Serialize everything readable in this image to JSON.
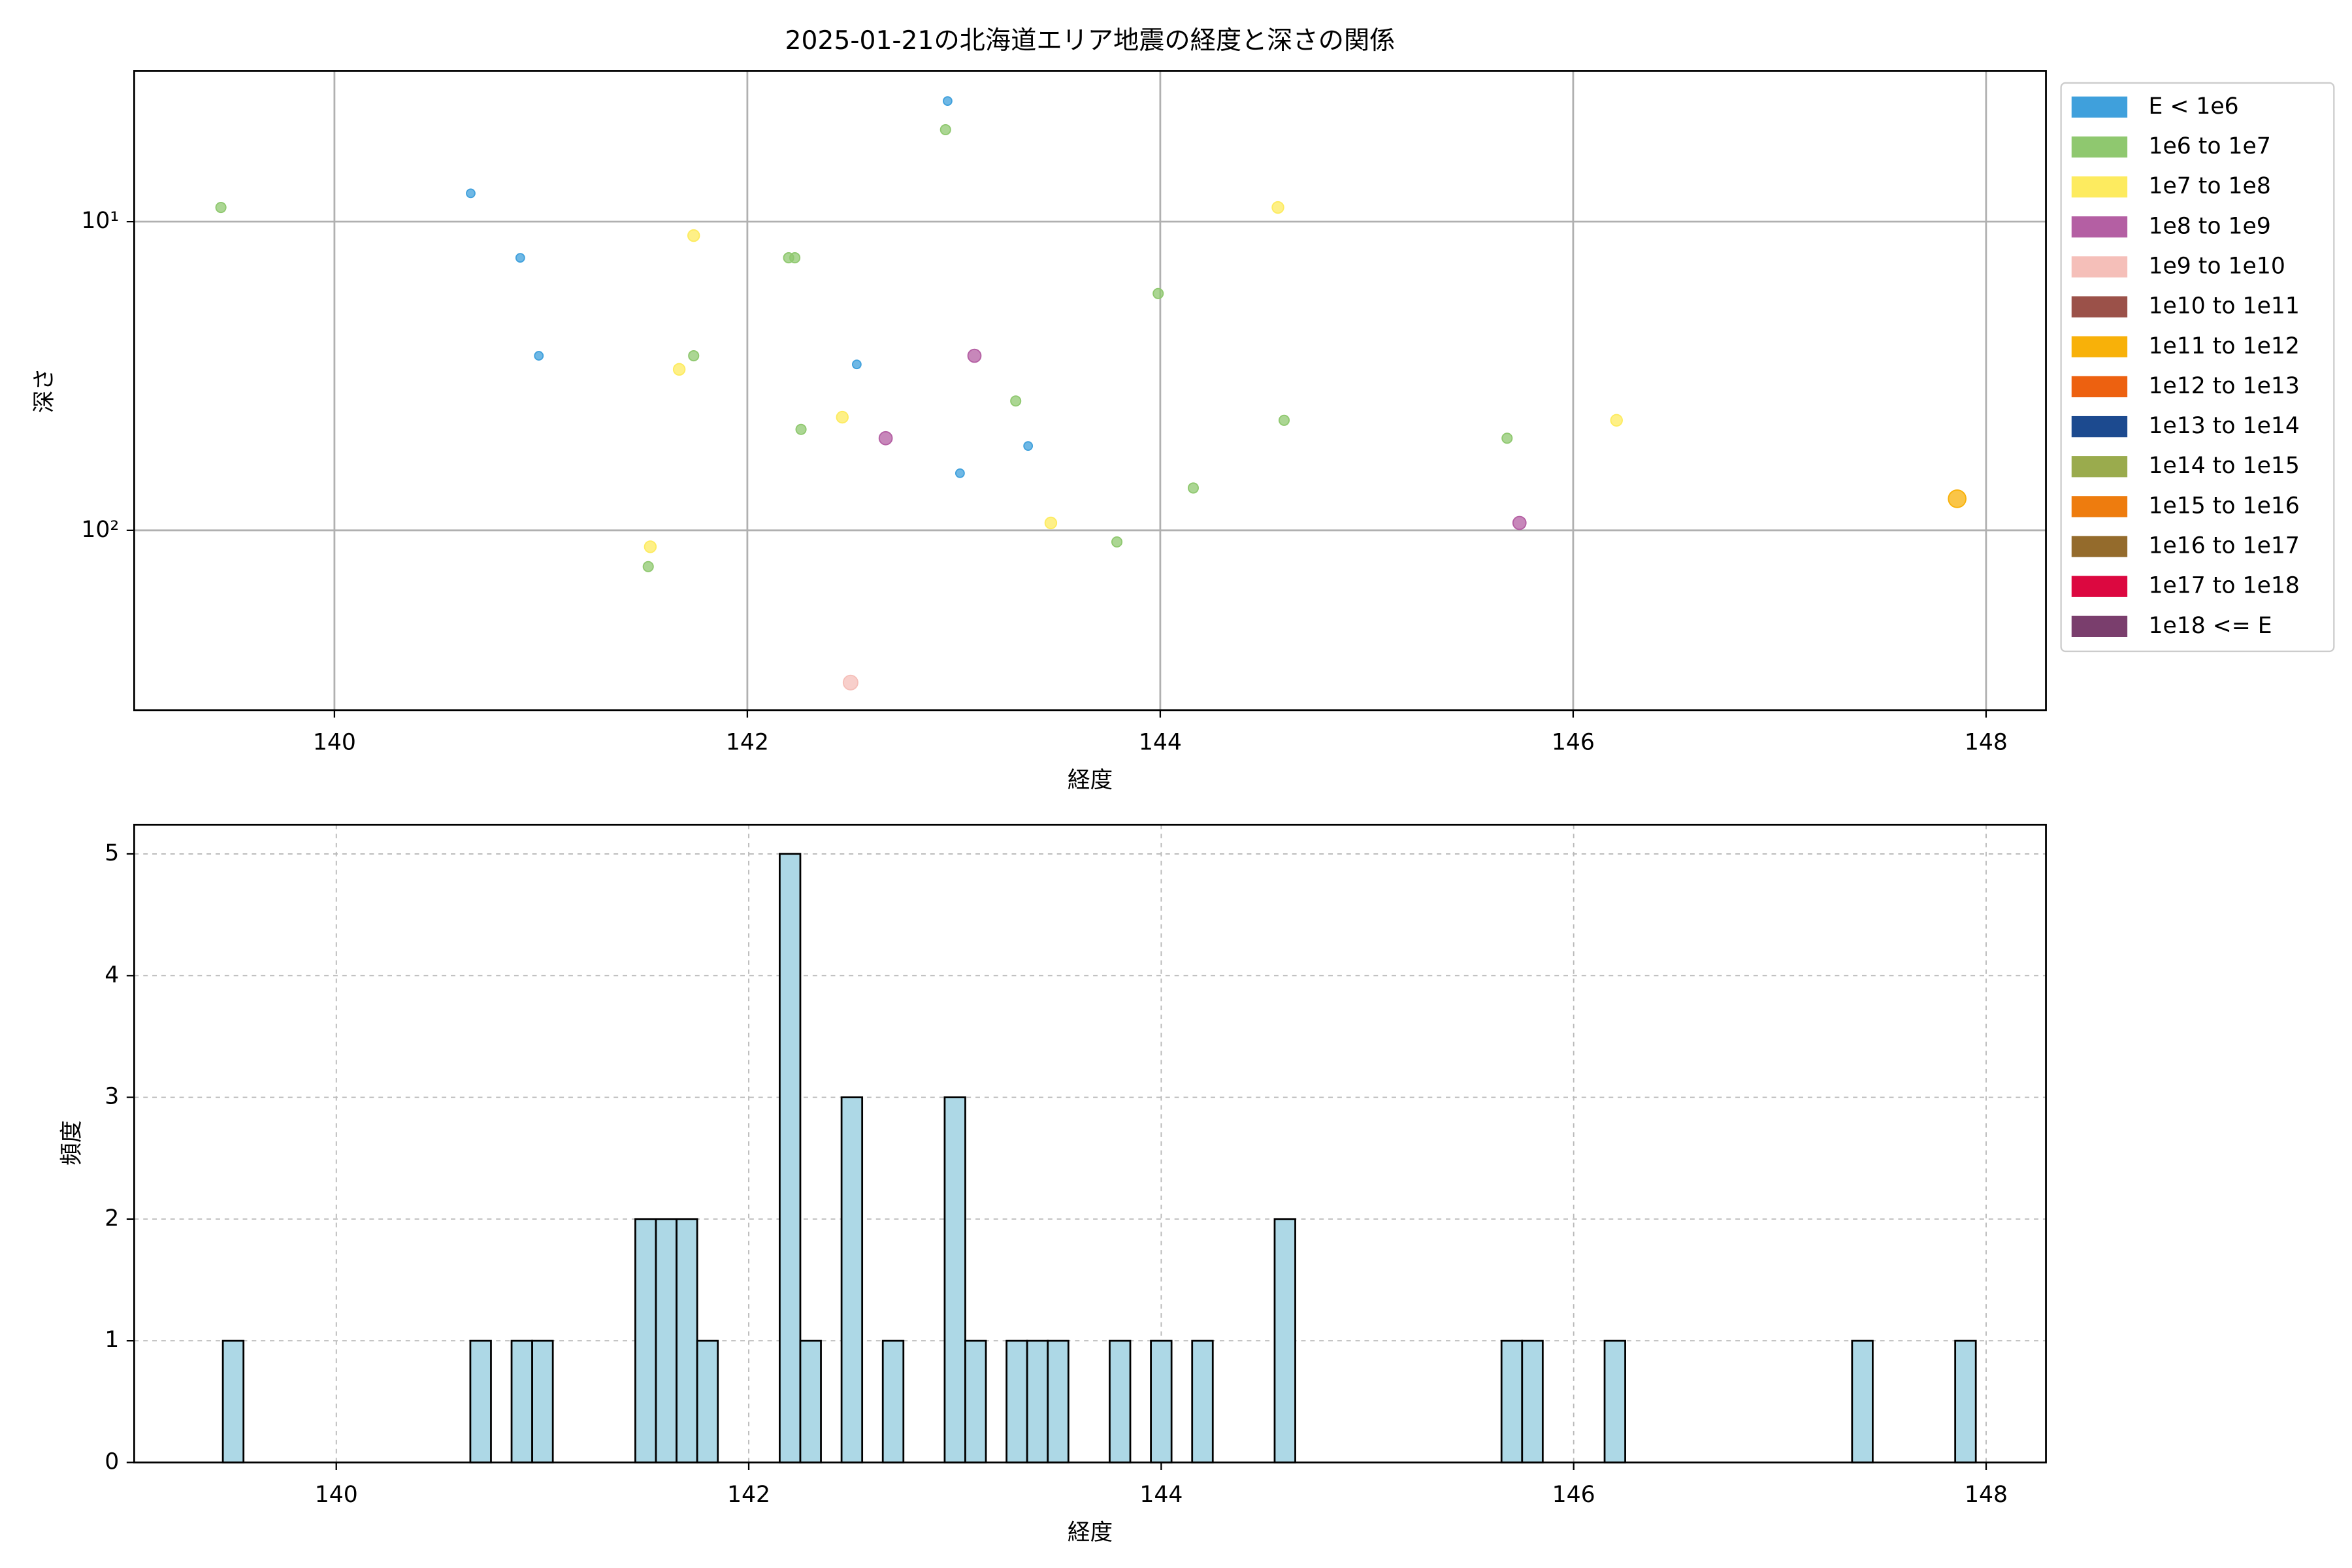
{
  "chart_data": [
    {
      "type": "scatter",
      "title": "2025-01-21の北海道エリア地震の経度と深さの関係",
      "xlabel": "経度",
      "ylabel": "深さ",
      "xlim": [
        139.03,
        148.29
      ],
      "ylim": [
        3.25,
        382
      ],
      "yscale": "log",
      "yinverted": true,
      "xticks": [
        140,
        142,
        144,
        146,
        148
      ],
      "yticks": [
        {
          "value": 10,
          "label": "10¹"
        },
        {
          "value": 100,
          "label": "10²"
        }
      ],
      "grid": true,
      "grid_linestyle": "solid",
      "legend": "outside upper right",
      "series": [
        {
          "name": "E < 1e6",
          "color": "#3fa0dc",
          "x": [
            140.66,
            140.9,
            140.99,
            142.53,
            142.97,
            143.03,
            143.36
          ],
          "values": [
            8.1,
            13.1,
            27.2,
            29.0,
            4.07,
            65.3,
            53.3
          ]
        },
        {
          "name": "1e6 to 1e7",
          "color": "#8fc86f",
          "x": [
            139.45,
            141.74,
            142.2,
            142.23,
            142.26,
            142.96,
            143.3,
            143.79,
            143.99,
            144.16,
            144.6,
            141.52,
            145.68
          ],
          "values": [
            9.0,
            27.2,
            13.1,
            13.1,
            47.1,
            5.04,
            38.1,
            109,
            17.1,
            72.9,
            44,
            131,
            50.3
          ]
        },
        {
          "name": "1e7 to 1e8",
          "color": "#fdeb5f",
          "x": [
            141.74,
            141.67,
            142.46,
            143.47,
            144.57,
            141.53,
            146.21
          ],
          "values": [
            11.1,
            30.1,
            43.0,
            94.6,
            9.0,
            113,
            44
          ]
        },
        {
          "name": "1e8 to 1e9",
          "color": "#b45fa3",
          "x": [
            142.67,
            143.1,
            145.74
          ],
          "values": [
            50.3,
            27.2,
            94.6
          ]
        },
        {
          "name": "1e9 to 1e10",
          "color": "#f5bfb9",
          "x": [
            142.5
          ],
          "values": [
            311
          ]
        },
        {
          "name": "1e10 to 1e11",
          "color": "#9b5149",
          "x": [],
          "values": []
        },
        {
          "name": "1e11 to 1e12",
          "color": "#f8b109",
          "x": [
            147.86
          ],
          "values": [
            79
          ]
        },
        {
          "name": "1e12 to 1e13",
          "color": "#ed6110",
          "x": [],
          "values": []
        },
        {
          "name": "1e13 to 1e14",
          "color": "#1c4a8f",
          "x": [],
          "values": []
        },
        {
          "name": "1e14 to 1e15",
          "color": "#9aab4d",
          "x": [],
          "values": []
        },
        {
          "name": "1e15 to 1e16",
          "color": "#ee7c0e",
          "x": [],
          "values": []
        },
        {
          "name": "1e16 to 1e17",
          "color": "#946b2c",
          "x": [],
          "values": []
        },
        {
          "name": "1e17 to 1e18",
          "color": "#dc0840",
          "x": [],
          "values": []
        },
        {
          "name": "1e18 <= E",
          "color": "#7a3e6d",
          "x": [],
          "values": []
        }
      ]
    },
    {
      "type": "histogram",
      "xlabel": "経度",
      "ylabel": "頻度",
      "color": "#add8e6",
      "edgecolor": "#000000",
      "xlim": [
        139.02,
        148.29
      ],
      "ylim": [
        0,
        5.24
      ],
      "xticks": [
        140,
        142,
        144,
        146,
        148
      ],
      "yticks": [
        0,
        1,
        2,
        3,
        4,
        5
      ],
      "grid": true,
      "grid_linestyle": "dashed",
      "bins": [
        139.45,
        139.55,
        139.65,
        139.75,
        139.85,
        139.95,
        140.05,
        140.15,
        140.25,
        140.35,
        140.45,
        140.55,
        140.65,
        140.75,
        140.85,
        140.95,
        141.05,
        141.15,
        141.25,
        141.35,
        141.45,
        141.55,
        141.65,
        141.75,
        141.85,
        141.95,
        142.05,
        142.15,
        142.25,
        142.35,
        142.45,
        142.55,
        142.65,
        142.75,
        142.85,
        142.95,
        143.05,
        143.15,
        143.25,
        143.35,
        143.45,
        143.55,
        143.65,
        143.75,
        143.85,
        143.95,
        144.05,
        144.15,
        144.25,
        144.35,
        144.45,
        144.55,
        144.65,
        144.75,
        144.85,
        144.95,
        145.05,
        145.15,
        145.25,
        145.35,
        145.45,
        145.55,
        145.65,
        145.75,
        145.85,
        145.95,
        146.05,
        146.15,
        146.25,
        146.35,
        146.45,
        146.55,
        146.65,
        146.75,
        146.85,
        146.95,
        147.05,
        147.15,
        147.25,
        147.35,
        147.45,
        147.55,
        147.65,
        147.75,
        147.85,
        147.95
      ],
      "values": [
        1,
        0,
        0,
        0,
        0,
        0,
        0,
        0,
        0,
        0,
        0,
        0,
        1,
        0,
        1,
        1,
        0,
        0,
        0,
        0,
        2,
        2,
        2,
        1,
        0,
        0,
        0,
        5,
        1,
        0,
        3,
        0,
        1,
        0,
        0,
        3,
        1,
        0,
        1,
        1,
        1,
        0,
        0,
        1,
        0,
        1,
        0,
        1,
        0,
        0,
        0,
        2,
        0,
        0,
        0,
        0,
        0,
        0,
        0,
        0,
        0,
        0,
        1,
        1,
        0,
        0,
        0,
        1,
        0,
        0,
        0,
        0,
        0,
        0,
        0,
        0,
        0,
        0,
        0,
        1,
        0,
        0,
        0,
        0,
        1
      ]
    }
  ]
}
